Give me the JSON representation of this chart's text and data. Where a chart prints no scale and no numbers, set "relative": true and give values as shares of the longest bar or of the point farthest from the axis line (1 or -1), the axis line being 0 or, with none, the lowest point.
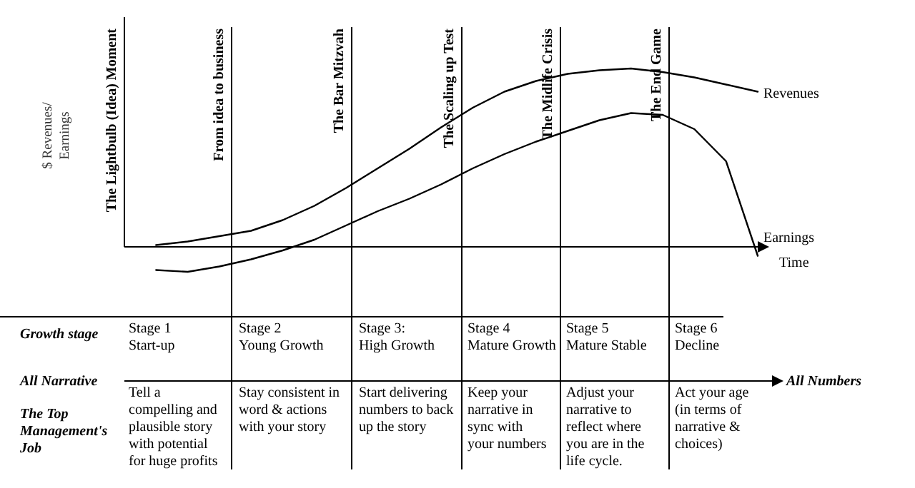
{
  "chart_data": {
    "type": "line",
    "relative": true,
    "xlabel": "Time",
    "ylabel": "$ Revenues/\nEarnings",
    "categories": [
      null,
      null,
      null,
      null,
      null,
      null,
      null,
      null,
      null,
      null,
      null,
      null,
      null,
      null,
      null,
      null,
      null,
      null,
      null,
      null,
      null
    ],
    "marker": "none",
    "line_style": "solid",
    "series": [
      {
        "name": "Revenues",
        "color": "#000000",
        "values": [
          null,
          0.01,
          0.03,
          0.06,
          0.09,
          0.15,
          0.23,
          0.33,
          0.44,
          0.55,
          0.67,
          0.78,
          0.87,
          0.93,
          0.97,
          0.99,
          1,
          0.98,
          0.95,
          0.91,
          0.87
        ]
      },
      {
        "name": "Earnings",
        "color": "#000000",
        "values": [
          null,
          -0.13,
          -0.14,
          -0.11,
          -0.07,
          -0.02,
          0.04,
          0.12,
          0.2,
          0.27,
          0.35,
          0.44,
          0.52,
          0.59,
          0.65,
          0.71,
          0.75,
          0.74,
          0.66,
          0.48,
          -0.05
        ]
      }
    ],
    "annotations": [
      "Growth stage",
      "Stage 1\nStart-up",
      "Stage 2\nYoung Growth",
      "Stage 3:\nHigh Growth",
      "Stage 4\nMature Growth",
      "Stage 5\nMature Stable",
      "Stage 6\nDecline",
      "All Narrative",
      "All Numbers",
      "The Top\nManagement's\nJob",
      "Tell a\ncompelling and\nplausible story\nwith potential\nfor huge profits",
      "Stay consistent in\nword & actions\nwith your story",
      "Start delivering\nnumbers to back\nup the story",
      "Keep your\nnarrative in\nsync with\nyour numbers",
      "Adjust your\nnarrative to\nreflect where\nyou are in the\nlife cycle.",
      "Act your age\n(in terms of\nnarrative &\nchoices)",
      "The Lightbulb (Idea) Moment",
      "From idea to business",
      "The Bar Mitzvah",
      "The Scaling up Test",
      "The Midlife Crisis",
      "The End Game"
    ]
  }
}
